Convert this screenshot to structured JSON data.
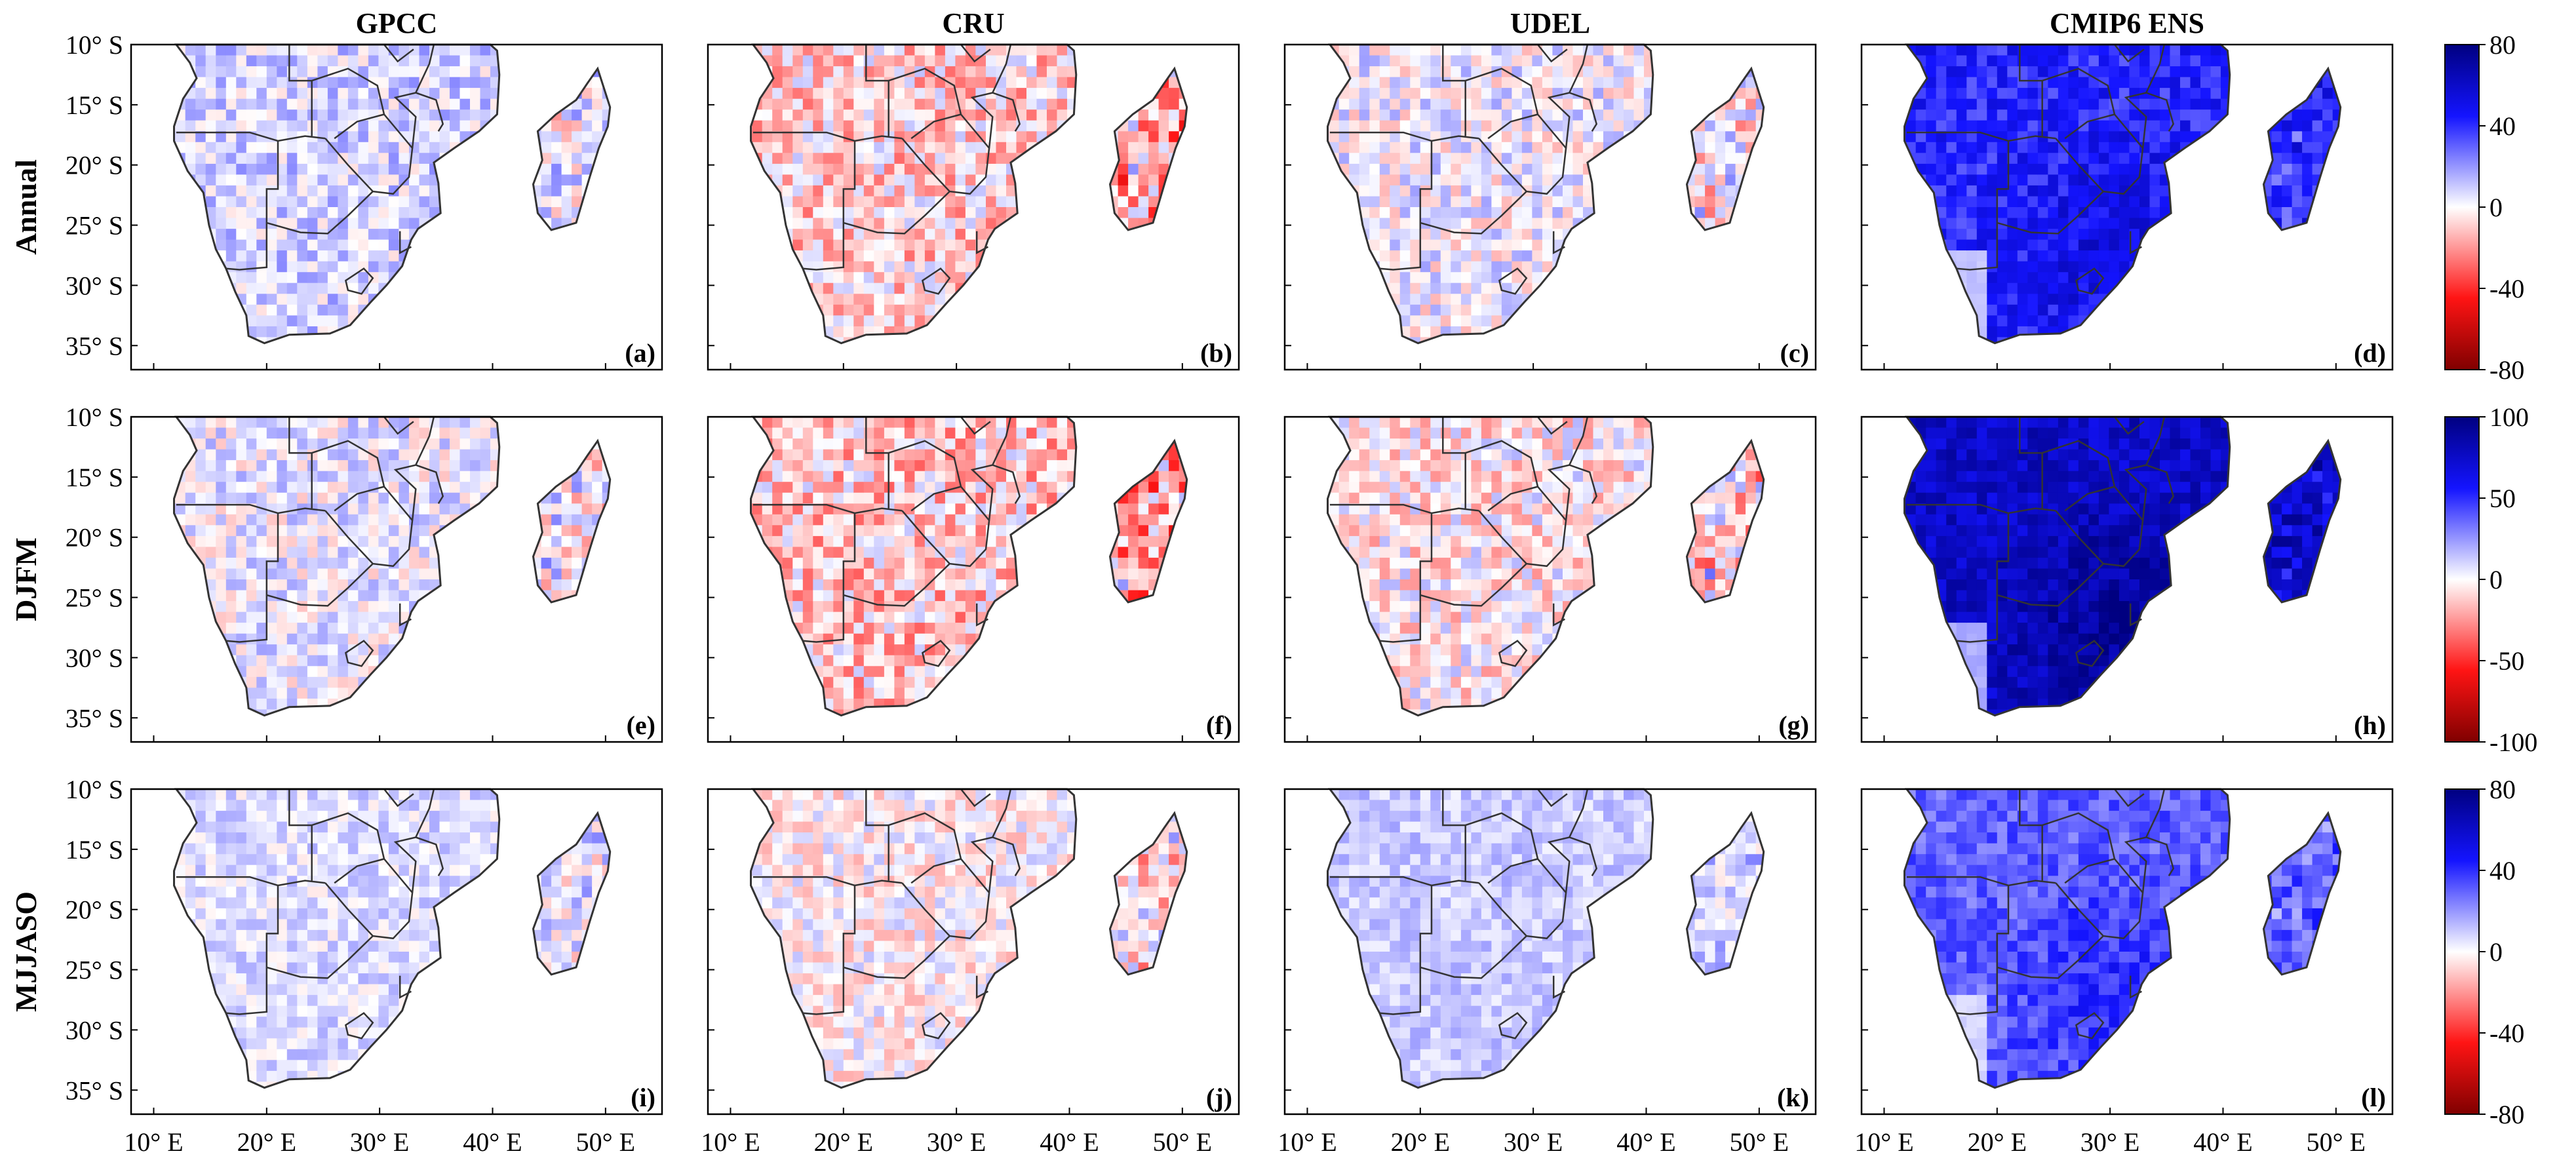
{
  "figure": {
    "columns": [
      "GPCC",
      "CRU",
      "UDEL",
      "CMIP6 ENS"
    ],
    "rows": [
      "Annual",
      "DJFM",
      "MJJASO"
    ],
    "panels": [
      [
        "(a)",
        "(b)",
        "(c)",
        "(d)"
      ],
      [
        "(e)",
        "(f)",
        "(g)",
        "(h)"
      ],
      [
        "(i)",
        "(j)",
        "(k)",
        "(l)"
      ]
    ],
    "lat_labels": [
      "10° S",
      "15° S",
      "20° S",
      "25° S",
      "30° S",
      "35° S"
    ],
    "lon_labels": [
      "10° E",
      "20° E",
      "30° E",
      "40° E",
      "50° E"
    ],
    "colorbars": [
      {
        "ticks": [
          "80",
          "40",
          "0",
          "-40",
          "-80"
        ]
      },
      {
        "ticks": [
          "100",
          "50",
          "0",
          "-50",
          "-100"
        ]
      },
      {
        "ticks": [
          "80",
          "40",
          "0",
          "-40",
          "-80"
        ]
      }
    ],
    "colors": {
      "high": "#000080",
      "mid_high": "#1414ff",
      "zero": "#ffffff",
      "mid_low": "#ff1414",
      "low": "#800000",
      "land_edge": "#333333"
    }
  },
  "chart_data": {
    "type": "heatmap",
    "x_axis": {
      "ticks": [
        "10° E",
        "20° E",
        "30° E",
        "40° E",
        "50° E"
      ],
      "range": [
        8,
        55
      ]
    },
    "y_axis": {
      "ticks": [
        "10° S",
        "15° S",
        "20° S",
        "25° S",
        "30° S",
        "35° S"
      ],
      "range": [
        -37,
        -10
      ]
    },
    "colorbar_ranges": [
      [
        -80,
        80
      ],
      [
        -100,
        100
      ],
      [
        -80,
        80
      ]
    ],
    "panel_intensity": [
      [
        {
          "bias": 8,
          "noise": 14
        },
        {
          "bias": -8,
          "noise": 20
        },
        {
          "bias": 2,
          "noise": 16
        },
        {
          "bias": 42,
          "noise": 12
        }
      ],
      [
        {
          "bias": 4,
          "noise": 18
        },
        {
          "bias": -12,
          "noise": 26
        },
        {
          "bias": -4,
          "noise": 22
        },
        {
          "bias": 75,
          "noise": 14
        }
      ],
      [
        {
          "bias": 6,
          "noise": 10
        },
        {
          "bias": -2,
          "noise": 14
        },
        {
          "bias": 10,
          "noise": 8
        },
        {
          "bias": 30,
          "noise": 10
        }
      ]
    ]
  }
}
